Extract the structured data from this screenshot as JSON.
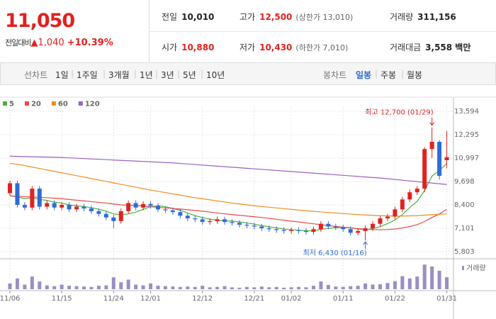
{
  "header": {
    "price": "11,050",
    "change_label": "전일대비",
    "change": "▲1,040",
    "change_pct": "+10.39%",
    "stats": [
      {
        "label": "전일",
        "value": "10,010"
      },
      {
        "label": "고가",
        "value": "12,500",
        "note": "(상한가 13,010)",
        "color": "#e0221f"
      },
      {
        "label": "거래량",
        "value": "311,156"
      },
      {
        "label": "시가",
        "value": "10,880",
        "color": "#e0221f"
      },
      {
        "label": "저가",
        "value": "10,430",
        "note": "(하한가 7,010)",
        "color": "#e0221f"
      },
      {
        "label": "거래대금",
        "value": "3,558 백만"
      }
    ]
  },
  "nav": {
    "line_chart_label": "선차트",
    "line_periods": [
      "1일",
      "1주일",
      "3개월",
      "1년",
      "3년",
      "5년",
      "10년"
    ],
    "candle_chart_label": "봉차트",
    "candle_periods": [
      "일봉",
      "주봉",
      "월봉"
    ],
    "selected_candle_period": 0
  },
  "chart_data": {
    "type": "candlestick",
    "categories": [
      "11/06",
      null,
      null,
      null,
      null,
      null,
      null,
      "11/15",
      null,
      null,
      null,
      null,
      null,
      null,
      "11/24",
      null,
      null,
      null,
      null,
      "12/01",
      null,
      null,
      null,
      null,
      null,
      null,
      "12/12",
      null,
      null,
      null,
      null,
      null,
      null,
      "12/21",
      null,
      null,
      null,
      null,
      "01/02",
      null,
      null,
      null,
      null,
      null,
      null,
      "01/11",
      null,
      null,
      null,
      null,
      null,
      null,
      "01/22",
      null,
      null,
      null,
      null,
      null,
      null,
      "01/31"
    ],
    "open": [
      9050,
      9600,
      8400,
      8250,
      9300,
      8300,
      8500,
      8250,
      8400,
      8150,
      8300,
      8200,
      8050,
      7900,
      7700,
      7500,
      8050,
      8500,
      8250,
      8450,
      8350,
      8150,
      8100,
      8000,
      7800,
      7650,
      7600,
      7450,
      7500,
      7600,
      7450,
      7400,
      7300,
      7250,
      7200,
      7100,
      7050,
      7000,
      6950,
      7000,
      6950,
      6900,
      7050,
      7350,
      7200,
      7150,
      7050,
      6850,
      6950,
      7100,
      7350,
      7650,
      7750,
      8150,
      8700,
      9100,
      9300,
      11500,
      11900,
      10880
    ],
    "high": [
      9750,
      9750,
      8550,
      9450,
      9450,
      8650,
      8650,
      8550,
      8550,
      8450,
      8450,
      8350,
      8200,
      8050,
      7850,
      8200,
      8650,
      8650,
      8600,
      8600,
      8500,
      8300,
      8250,
      8150,
      7950,
      7800,
      7750,
      7650,
      7750,
      7750,
      7600,
      7550,
      7450,
      7400,
      7350,
      7250,
      7200,
      7150,
      7150,
      7150,
      7100,
      7200,
      7500,
      7500,
      7350,
      7300,
      7200,
      7100,
      7250,
      7500,
      7800,
      7900,
      8300,
      8850,
      9250,
      9450,
      11600,
      12700,
      12000,
      12500
    ],
    "low": [
      8900,
      8250,
      8100,
      8100,
      8150,
      8150,
      8100,
      8100,
      8000,
      8000,
      8050,
      7900,
      7750,
      7550,
      7100,
      7350,
      7900,
      8100,
      8100,
      8200,
      8000,
      7950,
      7850,
      7650,
      7500,
      7450,
      7300,
      7300,
      7350,
      7300,
      7250,
      7150,
      7100,
      7050,
      6950,
      6900,
      6850,
      6800,
      6800,
      6800,
      6750,
      6750,
      6900,
      7050,
      7000,
      6900,
      6700,
      6700,
      6430,
      6950,
      7200,
      7500,
      7600,
      8000,
      8550,
      8950,
      9100,
      11000,
      9800,
      10430
    ],
    "close": [
      9600,
      8400,
      8250,
      9300,
      8300,
      8500,
      8250,
      8400,
      8150,
      8300,
      8200,
      8050,
      7900,
      7700,
      7500,
      8050,
      8500,
      8250,
      8450,
      8350,
      8150,
      8100,
      8000,
      7800,
      7650,
      7600,
      7450,
      7500,
      7600,
      7450,
      7400,
      7300,
      7250,
      7200,
      7100,
      7050,
      7000,
      6950,
      7000,
      6950,
      6900,
      7050,
      7350,
      7200,
      7150,
      7050,
      6850,
      6950,
      7100,
      7350,
      7650,
      7750,
      8150,
      8700,
      9100,
      9300,
      11500,
      11900,
      10010,
      11050
    ],
    "up_color": "#e0221f",
    "down_color": "#2f6bd6",
    "ylim": [
      5803,
      13594
    ],
    "yticks": [
      {
        "value": 5803,
        "label": "5,803"
      },
      {
        "value": 7101,
        "label": "7,101"
      },
      {
        "value": 8400,
        "label": "8,400"
      },
      {
        "value": 9698,
        "label": "9,698"
      },
      {
        "value": 10997,
        "label": "10,997"
      },
      {
        "value": 12295,
        "label": "12,295"
      },
      {
        "value": 13594,
        "label": "13,594"
      }
    ],
    "grid": true,
    "moving_averages": [
      {
        "name": "5",
        "color": "#4caf3c",
        "values": [
          8900,
          8850,
          8750,
          8800,
          8700,
          8650,
          8550,
          8500,
          8400,
          8350,
          8300,
          8250,
          8150,
          8050,
          7900,
          7850,
          7900,
          8000,
          8150,
          8300,
          8350,
          8300,
          8200,
          8100,
          7950,
          7800,
          7700,
          7600,
          7550,
          7520,
          7500,
          7450,
          7400,
          7330,
          7250,
          7180,
          7120,
          7060,
          7020,
          6990,
          6970,
          6960,
          7040,
          7090,
          7130,
          7150,
          7120,
          7060,
          7020,
          7080,
          7190,
          7360,
          7560,
          7860,
          8250,
          8600,
          9200,
          10000,
          10300,
          10700
        ]
      },
      {
        "name": "20",
        "color": "#e8484a",
        "values": [
          8900,
          8880,
          8860,
          8840,
          8820,
          8800,
          8770,
          8740,
          8700,
          8660,
          8620,
          8580,
          8540,
          8500,
          8450,
          8400,
          8380,
          8360,
          8340,
          8300,
          8260,
          8230,
          8200,
          8170,
          8130,
          8090,
          8050,
          8000,
          7950,
          7900,
          7860,
          7820,
          7780,
          7740,
          7700,
          7650,
          7600,
          7550,
          7500,
          7450,
          7400,
          7350,
          7300,
          7250,
          7200,
          7160,
          7120,
          7080,
          7050,
          7030,
          7020,
          7030,
          7060,
          7120,
          7200,
          7300,
          7480,
          7700,
          7900,
          8150
        ]
      },
      {
        "name": "60",
        "color": "#f08c1e",
        "values": [
          10700,
          10650,
          10580,
          10500,
          10420,
          10340,
          10260,
          10180,
          10100,
          10020,
          9940,
          9860,
          9780,
          9700,
          9620,
          9540,
          9460,
          9380,
          9300,
          9220,
          9150,
          9080,
          9010,
          8940,
          8870,
          8800,
          8740,
          8680,
          8620,
          8560,
          8500,
          8450,
          8400,
          8350,
          8310,
          8270,
          8230,
          8190,
          8150,
          8110,
          8070,
          8040,
          8010,
          7980,
          7950,
          7920,
          7890,
          7860,
          7840,
          7820,
          7800,
          7790,
          7780,
          7780,
          7790,
          7800,
          7830,
          7860,
          7880,
          7900
        ]
      },
      {
        "name": "120",
        "color": "#9c5fc4",
        "values": [
          11100,
          11090,
          11080,
          11070,
          11060,
          11050,
          11040,
          11030,
          11010,
          10990,
          10970,
          10950,
          10930,
          10910,
          10890,
          10870,
          10850,
          10830,
          10810,
          10790,
          10770,
          10750,
          10730,
          10700,
          10670,
          10640,
          10610,
          10580,
          10550,
          10520,
          10490,
          10460,
          10430,
          10400,
          10370,
          10340,
          10310,
          10280,
          10250,
          10220,
          10190,
          10160,
          10130,
          10100,
          10070,
          10040,
          10010,
          9980,
          9950,
          9920,
          9890,
          9850,
          9810,
          9770,
          9730,
          9690,
          9650,
          9610,
          9570,
          9530
        ]
      }
    ],
    "volume": {
      "name": "거래량",
      "color": "#9b8ec4",
      "ylim": [
        0,
        700000
      ],
      "values": [
        150000,
        280000,
        120000,
        330000,
        200000,
        100000,
        80000,
        120000,
        90000,
        80000,
        70000,
        60000,
        90000,
        100000,
        310000,
        180000,
        250000,
        120000,
        100000,
        150000,
        90000,
        80000,
        70000,
        60000,
        70000,
        60000,
        90000,
        50000,
        60000,
        80000,
        50000,
        40000,
        60000,
        50000,
        70000,
        50000,
        60000,
        40000,
        50000,
        60000,
        50000,
        90000,
        200000,
        110000,
        70000,
        60000,
        80000,
        90000,
        150000,
        120000,
        130000,
        160000,
        210000,
        340000,
        280000,
        330000,
        640000,
        590000,
        480000,
        311156
      ]
    },
    "annotations": [
      {
        "text": "최고 12,700 (01/29)",
        "index": 57,
        "value": 12700,
        "color": "#e0221f"
      },
      {
        "text": "최저 6,430 (01/16)",
        "index": 48,
        "value": 6430,
        "color": "#2f6bd6"
      }
    ]
  }
}
